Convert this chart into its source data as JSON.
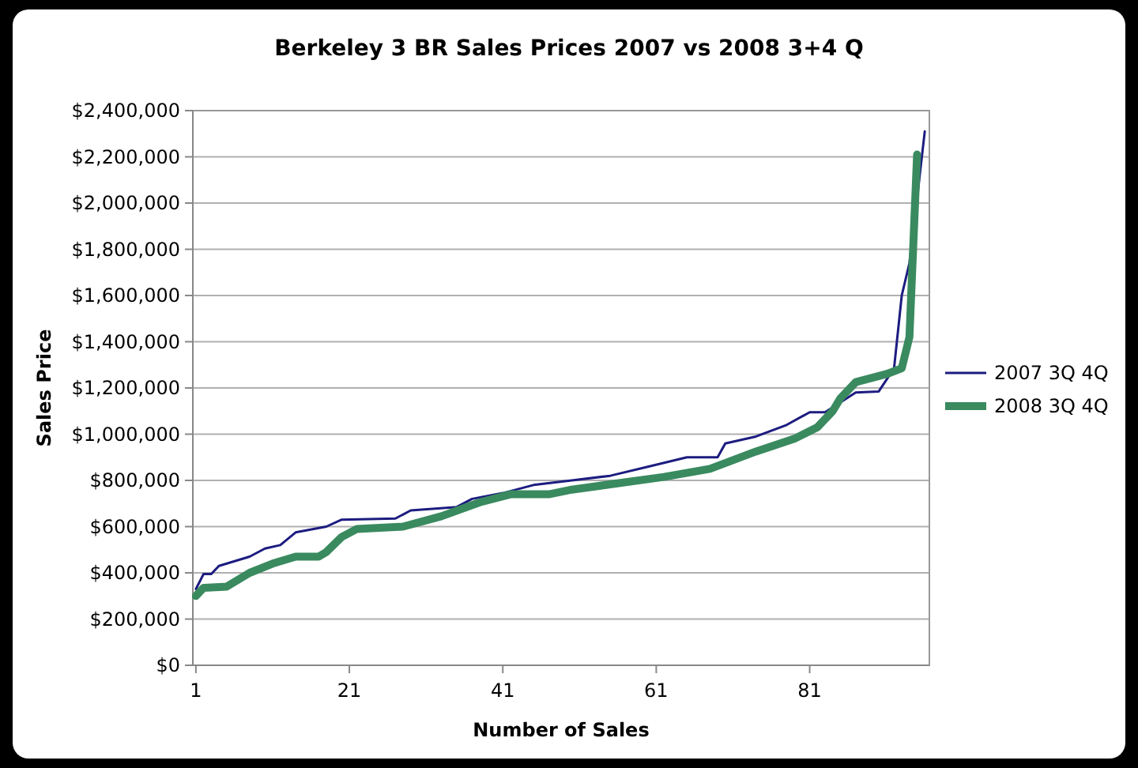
{
  "chart_data": {
    "type": "line",
    "title": "Berkeley 3 BR Sales Prices 2007 vs 2008 3+4 Q",
    "xlabel": "Number of Sales",
    "ylabel": "Sales Price",
    "xlim": [
      0.6,
      96.6
    ],
    "xticks": [
      1,
      21,
      41,
      61,
      81
    ],
    "ylim": [
      0,
      2400000
    ],
    "yticks": [
      {
        "value": 0,
        "label": "$0"
      },
      {
        "value": 200000,
        "label": "$200,000"
      },
      {
        "value": 400000,
        "label": "$400,000"
      },
      {
        "value": 600000,
        "label": "$600,000"
      },
      {
        "value": 800000,
        "label": "$800,000"
      },
      {
        "value": 1000000,
        "label": "$1,000,000"
      },
      {
        "value": 1200000,
        "label": "$1,200,000"
      },
      {
        "value": 1400000,
        "label": "$1,400,000"
      },
      {
        "value": 1600000,
        "label": "$1,600,000"
      },
      {
        "value": 1800000,
        "label": "$1,800,000"
      },
      {
        "value": 2000000,
        "label": "$2,000,000"
      },
      {
        "value": 2200000,
        "label": "$2,200,000"
      },
      {
        "value": 2400000,
        "label": "$2,400,000"
      }
    ],
    "grid": "y",
    "legend": "right",
    "marker": "none",
    "series": [
      {
        "name": "2007 3Q 4Q",
        "color": "#1c1c80",
        "x": [
          1,
          2,
          3,
          4,
          8,
          10,
          12,
          14,
          18,
          20,
          27,
          29,
          35,
          37,
          41,
          45,
          50,
          55,
          60,
          65,
          69,
          70,
          74,
          78,
          81,
          83,
          87,
          90,
          92,
          93,
          94,
          95,
          96
        ],
        "values": [
          330000,
          395000,
          395000,
          430000,
          470000,
          505000,
          520000,
          575000,
          600000,
          630000,
          635000,
          670000,
          685000,
          720000,
          745000,
          780000,
          800000,
          820000,
          860000,
          900000,
          900000,
          960000,
          990000,
          1040000,
          1095000,
          1095000,
          1180000,
          1185000,
          1285000,
          1600000,
          1740000,
          2020000,
          2310000
        ]
      },
      {
        "name": "2008 3Q 4Q",
        "color": "#3a8a5f",
        "x": [
          1,
          2,
          5,
          8,
          11,
          14,
          17,
          18,
          20,
          22,
          28,
          33,
          38,
          42,
          47,
          50,
          62,
          68,
          74,
          79,
          82,
          84,
          85,
          87,
          91,
          93,
          94,
          95
        ],
        "values": [
          300000,
          335000,
          340000,
          400000,
          440000,
          470000,
          470000,
          490000,
          555000,
          590000,
          600000,
          645000,
          705000,
          740000,
          740000,
          760000,
          815000,
          850000,
          925000,
          980000,
          1030000,
          1100000,
          1155000,
          1225000,
          1260000,
          1285000,
          1420000,
          2210000
        ]
      }
    ]
  }
}
